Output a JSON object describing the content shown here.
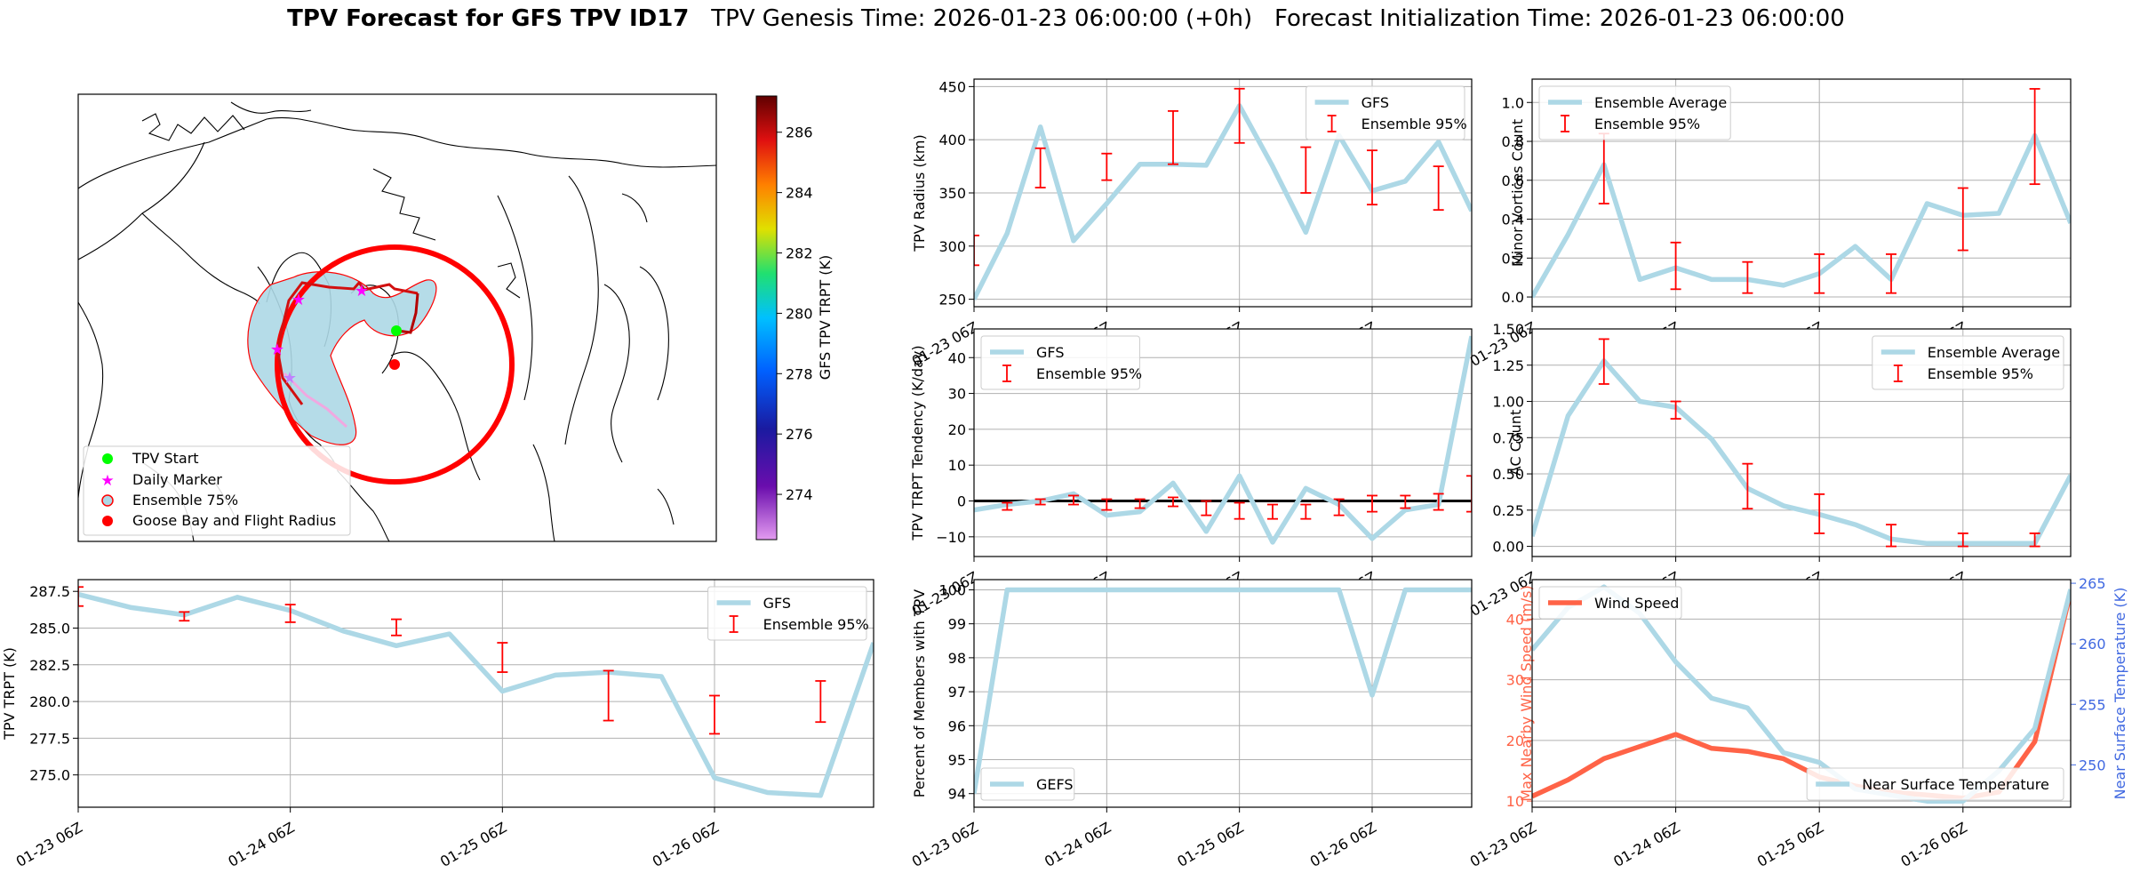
{
  "title": {
    "bold": "TPV Forecast for GFS TPV ID17",
    "genesis": "TPV Genesis Time: 2026-01-23 06:00:00 (+0h)",
    "init": "Forecast Initialization Time: 2026-01-23 06:00:00"
  },
  "colors": {
    "line": "#add8e6",
    "err": "#ff0000",
    "wind": "#ff6347",
    "temp_axis": "#4169e1",
    "grid": "#b0b0b0",
    "map_fill": "#add8e6",
    "goose": "#ff0000"
  },
  "time_ticks": [
    "01-23 06Z",
    "01-24 06Z",
    "01-25 06Z",
    "01-26 06Z"
  ],
  "map": {
    "colorbar_label": "GFS TPV TRPT (K)",
    "colorbar_ticks": [
      "274",
      "276",
      "278",
      "280",
      "282",
      "284",
      "286"
    ],
    "colorbar_range": [
      272.5,
      287.2
    ],
    "legend": [
      "TPV Start",
      "Daily Marker",
      "Ensemble 75%",
      "Goose Bay and Flight Radius"
    ]
  },
  "chart_data": [
    {
      "id": "trpt",
      "type": "line",
      "ylabel": "TPV TRPT (K)",
      "ylim": [
        272.8,
        288.3
      ],
      "yticks": [
        275.0,
        277.5,
        280.0,
        282.5,
        285.0,
        287.5
      ],
      "ytick_labels": [
        "275.0",
        "277.5",
        "280.0",
        "282.5",
        "285.0",
        "287.5"
      ],
      "x": [
        0,
        0.25,
        0.5,
        0.75,
        1.0,
        1.25,
        1.5,
        1.75,
        2.0,
        2.25,
        2.5,
        2.75,
        3.0,
        3.25,
        3.5,
        3.75
      ],
      "series": [
        {
          "name": "GFS",
          "values": [
            287.3,
            286.4,
            285.9,
            287.1,
            286.2,
            284.8,
            283.8,
            284.6,
            280.7,
            281.8,
            282.0,
            281.7,
            274.8,
            273.8,
            273.6,
            284.0
          ]
        }
      ],
      "errorbars": [
        {
          "x": 0.0,
          "low": 286.5,
          "high": 287.8
        },
        {
          "x": 0.5,
          "low": 285.5,
          "high": 286.1
        },
        {
          "x": 1.0,
          "low": 285.4,
          "high": 286.6
        },
        {
          "x": 1.5,
          "low": 284.5,
          "high": 285.6
        },
        {
          "x": 2.0,
          "low": 282.0,
          "high": 284.0
        },
        {
          "x": 2.5,
          "low": 278.7,
          "high": 282.1
        },
        {
          "x": 3.0,
          "low": 277.8,
          "high": 280.4
        },
        {
          "x": 3.5,
          "low": 278.6,
          "high": 281.4
        }
      ],
      "legend": [
        "GFS",
        "Ensemble 95%"
      ],
      "legend_loc": "upper right"
    },
    {
      "id": "radius",
      "type": "line",
      "ylabel": "TPV Radius (km)",
      "ylim": [
        243,
        457
      ],
      "yticks": [
        250,
        300,
        350,
        400,
        450
      ],
      "ytick_labels": [
        "250",
        "300",
        "350",
        "400",
        "450"
      ],
      "x": [
        0,
        0.25,
        0.5,
        0.75,
        1.0,
        1.25,
        1.5,
        1.75,
        2.0,
        2.25,
        2.5,
        2.75,
        3.0,
        3.25,
        3.5,
        3.75
      ],
      "series": [
        {
          "name": "GFS",
          "values": [
            250,
            312,
            412,
            305,
            340,
            377,
            377,
            376,
            432,
            375,
            313,
            404,
            352,
            361,
            398,
            333
          ]
        }
      ],
      "errorbars": [
        {
          "x": 0.0,
          "low": 282,
          "high": 310
        },
        {
          "x": 0.5,
          "low": 355,
          "high": 392
        },
        {
          "x": 1.0,
          "low": 362,
          "high": 387
        },
        {
          "x": 1.5,
          "low": 377,
          "high": 427
        },
        {
          "x": 2.0,
          "low": 397,
          "high": 448
        },
        {
          "x": 2.5,
          "low": 350,
          "high": 393
        },
        {
          "x": 3.0,
          "low": 339,
          "high": 390
        },
        {
          "x": 3.5,
          "low": 334,
          "high": 375
        }
      ],
      "legend": [
        "GFS",
        "Ensemble 95%"
      ],
      "legend_loc": "upper right"
    },
    {
      "id": "tendency",
      "type": "line",
      "ylabel": "TPV TRPT Tendency (K/day)",
      "ylim": [
        -15.5,
        48
      ],
      "yticks": [
        -10,
        0,
        10,
        20,
        30,
        40
      ],
      "ytick_labels": [
        "−10",
        "0",
        "10",
        "20",
        "30",
        "40"
      ],
      "zero_line": 0,
      "x": [
        0,
        0.25,
        0.5,
        0.75,
        1.0,
        1.25,
        1.5,
        1.75,
        2.0,
        2.25,
        2.5,
        2.75,
        3.0,
        3.25,
        3.5,
        3.75
      ],
      "series": [
        {
          "name": "GFS",
          "values": [
            -2.5,
            -1.0,
            0.0,
            2.0,
            -4.0,
            -3.0,
            5.0,
            -8.5,
            7.0,
            -11.5,
            3.5,
            -1.0,
            -10.5,
            -2.5,
            -1.0,
            46.0
          ]
        }
      ],
      "errorbars": [
        {
          "x": 0.25,
          "low": -2.5,
          "high": -0.5
        },
        {
          "x": 0.5,
          "low": -1.0,
          "high": 0.5
        },
        {
          "x": 0.75,
          "low": -1.0,
          "high": 1.5
        },
        {
          "x": 1.0,
          "low": -2.5,
          "high": 0.5
        },
        {
          "x": 1.25,
          "low": -2.0,
          "high": 0.5
        },
        {
          "x": 1.5,
          "low": -1.5,
          "high": 1.0
        },
        {
          "x": 1.75,
          "low": -4.0,
          "high": 0.0
        },
        {
          "x": 2.0,
          "low": -5.0,
          "high": -0.5
        },
        {
          "x": 2.25,
          "low": -5.0,
          "high": -1.0
        },
        {
          "x": 2.5,
          "low": -5.0,
          "high": -1.0
        },
        {
          "x": 2.75,
          "low": -4.0,
          "high": 0.5
        },
        {
          "x": 3.0,
          "low": -3.0,
          "high": 1.5
        },
        {
          "x": 3.25,
          "low": -2.0,
          "high": 1.5
        },
        {
          "x": 3.5,
          "low": -2.5,
          "high": 2.0
        },
        {
          "x": 3.75,
          "low": -3.0,
          "high": 7.0
        }
      ],
      "legend": [
        "GFS",
        "Ensemble 95%"
      ],
      "legend_loc": "upper left"
    },
    {
      "id": "percent",
      "type": "line",
      "ylabel": "Percent of Members with TPV",
      "ylim": [
        93.6,
        100.3
      ],
      "yticks": [
        94,
        95,
        96,
        97,
        98,
        99,
        100
      ],
      "ytick_labels": [
        "94",
        "95",
        "96",
        "97",
        "98",
        "99",
        "100"
      ],
      "x": [
        0,
        0.25,
        0.5,
        0.75,
        1.0,
        1.25,
        1.5,
        1.75,
        2.0,
        2.25,
        2.5,
        2.75,
        3.0,
        3.25,
        3.5,
        3.75
      ],
      "series": [
        {
          "name": "GEFS",
          "values": [
            94,
            100,
            100,
            100,
            100,
            100,
            100,
            100,
            100,
            100,
            100,
            100,
            96.9,
            100,
            100,
            100
          ]
        }
      ],
      "errorbars": [],
      "legend": [
        "GEFS"
      ],
      "legend_loc": "lower left"
    },
    {
      "id": "minor",
      "type": "line",
      "ylabel": "Minor Vortices Count",
      "ylim": [
        -0.05,
        1.12
      ],
      "yticks": [
        0.0,
        0.2,
        0.4,
        0.6,
        0.8,
        1.0
      ],
      "ytick_labels": [
        "0.0",
        "0.2",
        "0.4",
        "0.6",
        "0.8",
        "1.0"
      ],
      "x": [
        0,
        0.25,
        0.5,
        0.75,
        1.0,
        1.25,
        1.5,
        1.75,
        2.0,
        2.25,
        2.5,
        2.75,
        3.0,
        3.25,
        3.5,
        3.75
      ],
      "series": [
        {
          "name": "Ensemble Average",
          "values": [
            0.0,
            0.32,
            0.68,
            0.09,
            0.15,
            0.09,
            0.09,
            0.06,
            0.12,
            0.26,
            0.09,
            0.48,
            0.42,
            0.43,
            0.83,
            0.38
          ]
        }
      ],
      "errorbars": [
        {
          "x": 0.5,
          "low": 0.48,
          "high": 0.84
        },
        {
          "x": 1.0,
          "low": 0.04,
          "high": 0.28
        },
        {
          "x": 1.5,
          "low": 0.02,
          "high": 0.18
        },
        {
          "x": 2.0,
          "low": 0.02,
          "high": 0.22
        },
        {
          "x": 2.5,
          "low": 0.02,
          "high": 0.22
        },
        {
          "x": 3.0,
          "low": 0.24,
          "high": 0.56
        },
        {
          "x": 3.5,
          "low": 0.58,
          "high": 1.07
        }
      ],
      "legend": [
        "Ensemble Average",
        "Ensemble 95%"
      ],
      "legend_loc": "upper left"
    },
    {
      "id": "ac",
      "type": "line",
      "ylabel": "AC Count",
      "ylim": [
        -0.07,
        1.5
      ],
      "yticks": [
        0.0,
        0.25,
        0.5,
        0.75,
        1.0,
        1.25,
        1.5
      ],
      "ytick_labels": [
        "0.00",
        "0.25",
        "0.50",
        "0.75",
        "1.00",
        "1.25",
        "1.50"
      ],
      "x": [
        0,
        0.25,
        0.5,
        0.75,
        1.0,
        1.25,
        1.5,
        1.75,
        2.0,
        2.25,
        2.5,
        2.75,
        3.0,
        3.25,
        3.5,
        3.75
      ],
      "series": [
        {
          "name": "Ensemble Average",
          "values": [
            0.07,
            0.9,
            1.28,
            1.0,
            0.96,
            0.74,
            0.4,
            0.28,
            0.22,
            0.15,
            0.05,
            0.02,
            0.02,
            0.02,
            0.02,
            0.49
          ]
        }
      ],
      "errorbars": [
        {
          "x": 0.5,
          "low": 1.12,
          "high": 1.43
        },
        {
          "x": 1.0,
          "low": 0.88,
          "high": 1.0
        },
        {
          "x": 1.5,
          "low": 0.26,
          "high": 0.57
        },
        {
          "x": 2.0,
          "low": 0.09,
          "high": 0.36
        },
        {
          "x": 2.5,
          "low": 0.0,
          "high": 0.15
        },
        {
          "x": 3.0,
          "low": 0.0,
          "high": 0.09
        },
        {
          "x": 3.5,
          "low": 0.0,
          "high": 0.09
        }
      ],
      "legend": [
        "Ensemble Average",
        "Ensemble 95%"
      ],
      "legend_loc": "upper right"
    },
    {
      "id": "wind",
      "type": "line",
      "ylabel": "Max Nearby Wind Speed (m/s)",
      "ylim": [
        9,
        46.5
      ],
      "yticks": [
        10,
        20,
        30,
        40
      ],
      "ytick_labels": [
        "10",
        "20",
        "30",
        "40"
      ],
      "y2label": "Near Surface Temperature (K)",
      "y2lim": [
        246.5,
        265.3
      ],
      "y2ticks": [
        250,
        255,
        260,
        265
      ],
      "y2tick_labels": [
        "250",
        "255",
        "260",
        "265"
      ],
      "x": [
        0,
        0.25,
        0.5,
        0.75,
        1.0,
        1.25,
        1.5,
        1.75,
        2.0,
        2.25,
        2.5,
        2.75,
        3.0,
        3.25,
        3.5,
        3.75
      ],
      "series": [
        {
          "name": "Wind Speed",
          "axis": "left",
          "values": [
            10.8,
            13.5,
            17.0,
            19.0,
            21.0,
            18.7,
            18.2,
            17.0,
            14.0,
            12.5,
            11.5,
            11.0,
            10.5,
            11.5,
            19.8,
            44.5
          ]
        },
        {
          "name": "Near Surface Temperature",
          "axis": "right",
          "values": [
            259.5,
            263.0,
            264.7,
            262.5,
            258.5,
            255.5,
            254.7,
            251.0,
            250.2,
            248.0,
            247.5,
            247.0,
            247.0,
            249.5,
            253.0,
            264.5
          ]
        }
      ],
      "legend": [
        "Wind Speed",
        "Near Surface Temperature"
      ]
    }
  ]
}
